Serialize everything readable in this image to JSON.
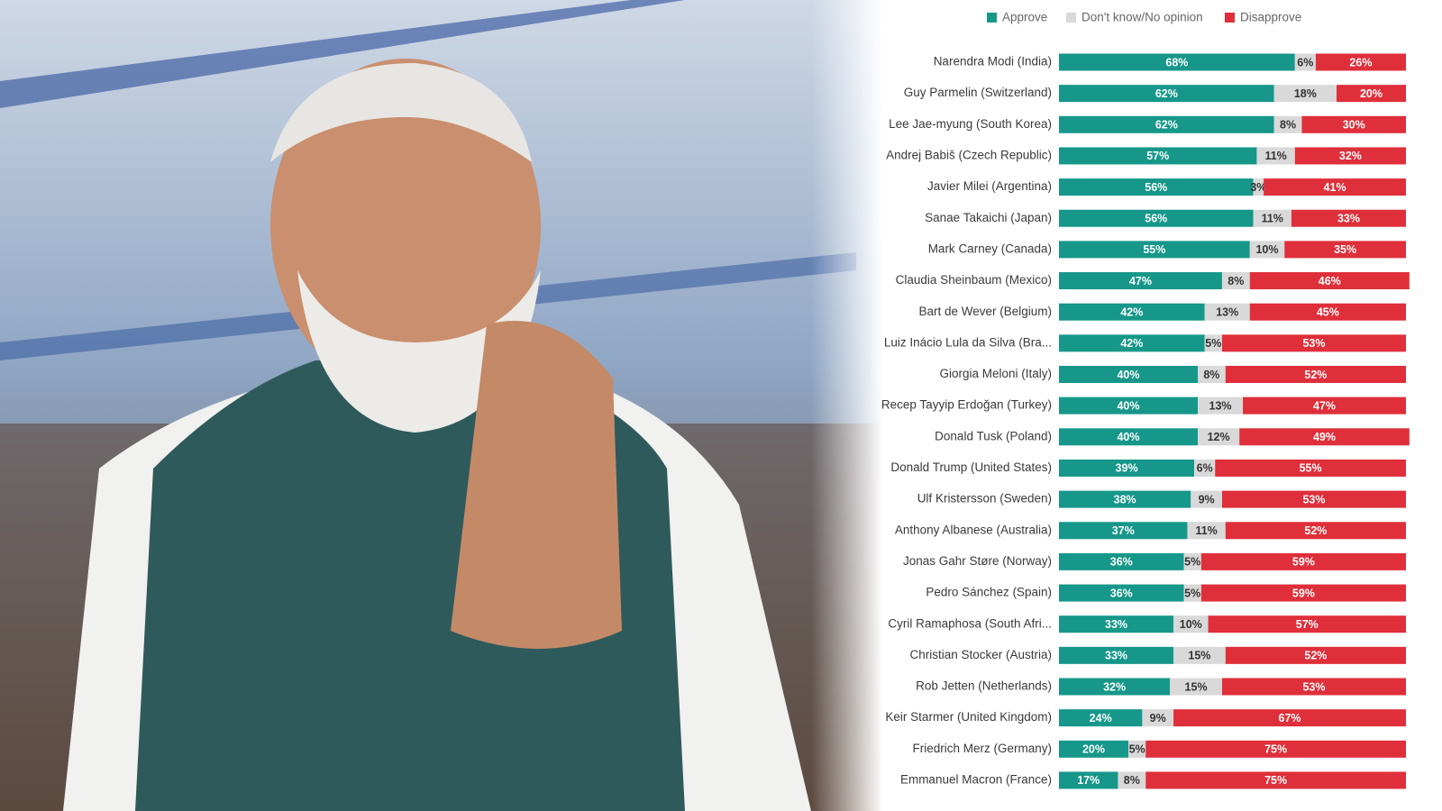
{
  "chart_data": {
    "type": "stacked-bar",
    "categories": [
      "Narendra Modi (India)",
      "Guy Parmelin (Switzerland)",
      "Lee Jae-myung (South Korea)",
      "Andrej Babiš (Czech Republic)",
      "Javier Milei (Argentina)",
      "Sanae Takaichi (Japan)",
      "Mark Carney (Canada)",
      "Claudia Sheinbaum (Mexico)",
      "Bart de Wever (Belgium)",
      "Luiz Inácio Lula da Silva (Bra...",
      "Giorgia Meloni (Italy)",
      "Recep Tayyip Erdoğan (Turkey)",
      "Donald Tusk (Poland)",
      "Donald Trump (United States)",
      "Ulf Kristersson (Sweden)",
      "Anthony Albanese (Australia)",
      "Jonas Gahr Støre (Norway)",
      "Pedro Sánchez (Spain)",
      "Cyril Ramaphosa (South Afri...",
      "Christian Stocker (Austria)",
      "Rob Jetten (Netherlands)",
      "Keir Starmer (United Kingdom)",
      "Friedrich Merz (Germany)",
      "Emmanuel Macron (France)"
    ],
    "series": [
      {
        "name": "Approve",
        "color": "#16978a",
        "values": [
          68,
          62,
          62,
          57,
          56,
          56,
          55,
          47,
          42,
          42,
          40,
          40,
          40,
          39,
          38,
          37,
          36,
          36,
          33,
          33,
          32,
          24,
          20,
          17
        ],
        "value_labels": [
          "68%",
          "62%",
          "62%",
          "57%",
          "56%",
          "56%",
          "55%",
          "47%",
          "42%",
          "42%",
          "40%",
          "40%",
          "40%",
          "39%",
          "38%",
          "37%",
          "36%",
          "36%",
          "33%",
          "33%",
          "32%",
          "24%",
          "20%",
          "17%"
        ]
      },
      {
        "name": "Don't know/No opinion",
        "color": "#d9d9d9",
        "values": [
          6,
          18,
          8,
          11,
          3,
          11,
          10,
          8,
          13,
          5,
          8,
          13,
          12,
          6,
          9,
          11,
          5,
          5,
          10,
          15,
          15,
          9,
          5,
          8
        ],
        "value_labels": [
          "6%",
          "18%",
          "8%",
          "11%",
          "3%",
          "11%",
          "10%",
          "8%",
          "13%",
          "5%",
          "8%",
          "13%",
          "12%",
          "6%",
          "9%",
          "11%",
          "5%",
          "5%",
          "10%",
          "15%",
          "15%",
          "9%",
          "5%",
          "8%"
        ]
      },
      {
        "name": "Disapprove",
        "color": "#df2f3a",
        "values": [
          26,
          20,
          30,
          32,
          41,
          33,
          35,
          46,
          45,
          53,
          52,
          47,
          49,
          55,
          53,
          52,
          59,
          59,
          57,
          52,
          53,
          67,
          75,
          75
        ],
        "value_labels": [
          "26%",
          "20%",
          "30%",
          "32%",
          "41%",
          "33%",
          "35%",
          "46%",
          "45%",
          "53%",
          "52%",
          "47%",
          "49%",
          "55%",
          "53%",
          "52%",
          "59%",
          "59%",
          "57%",
          "52%",
          "53%",
          "67%",
          "75%",
          "75%"
        ]
      }
    ]
  }
}
